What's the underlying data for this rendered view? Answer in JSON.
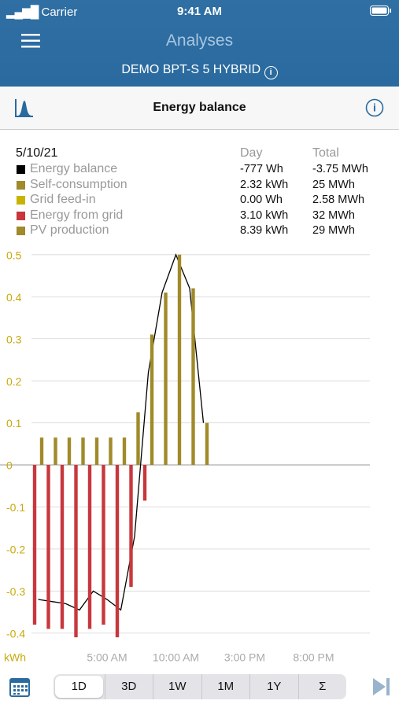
{
  "status": {
    "carrier": "Carrier",
    "time": "9:41 AM"
  },
  "header": {
    "title": "Analyses",
    "device": "DEMO BPT-S 5 HYBRID"
  },
  "toolbar": {
    "title": "Energy balance"
  },
  "summary": {
    "date": "5/10/21",
    "day_header": "Day",
    "total_header": "Total"
  },
  "chart_data": {
    "type": "bar",
    "categories": [
      null,
      null,
      null,
      null,
      null,
      "5:00 AM",
      null,
      null,
      null,
      null,
      "10:00 AM",
      null,
      null,
      null,
      null,
      "3:00 PM",
      null,
      null,
      null,
      null,
      "8:00 PM",
      null,
      null,
      null
    ],
    "series": [
      {
        "name": "Energy balance",
        "color": "#000000",
        "style": "line",
        "day": "-777 Wh",
        "total": "-3.75 MWh",
        "values": [
          -0.32,
          -0.325,
          -0.33,
          -0.345,
          -0.3,
          -0.32,
          -0.345,
          -0.17,
          0.22,
          0.41,
          0.5,
          0.42,
          0.1,
          null,
          null,
          null,
          null,
          null,
          null,
          null,
          null,
          null,
          null,
          null
        ]
      },
      {
        "name": "Self-consumption",
        "color": "#a08a2a",
        "style": "bar",
        "day": "2.32 kWh",
        "total": "25 MWh",
        "values": [
          0.065,
          0.065,
          0.065,
          0.065,
          0.065,
          0.065,
          0.065,
          0.125,
          0.31,
          0.41,
          0.5,
          0.42,
          0.1,
          null,
          null,
          null,
          null,
          null,
          null,
          null,
          null,
          null,
          null,
          null
        ]
      },
      {
        "name": "Grid feed-in",
        "color": "#c8b400",
        "style": "bar",
        "day": "0.00 Wh",
        "total": "2.58 MWh"
      },
      {
        "name": "Energy from grid",
        "color": "#c8373c",
        "style": "bar",
        "day": "3.10 kWh",
        "total": "32 MWh",
        "values": [
          -0.38,
          -0.39,
          -0.39,
          -0.41,
          -0.39,
          -0.38,
          -0.41,
          -0.29,
          -0.085,
          null,
          null,
          null,
          null,
          null,
          null,
          null,
          null,
          null,
          null,
          null,
          null,
          null,
          null,
          null
        ]
      },
      {
        "name": "PV production",
        "color": "#a08a2a",
        "style": "bar",
        "day": "8.39 kWh",
        "total": "29 MWh"
      }
    ],
    "ylabel": "kWh",
    "ylim": [
      -0.45,
      0.51
    ],
    "yticks": [
      -0.4,
      -0.3,
      -0.2,
      -0.1,
      0,
      0.1,
      0.2,
      0.3,
      0.4,
      0.5
    ],
    "grid": true
  },
  "tabs": [
    "1D",
    "3D",
    "1W",
    "1M",
    "1Y",
    "Σ"
  ]
}
